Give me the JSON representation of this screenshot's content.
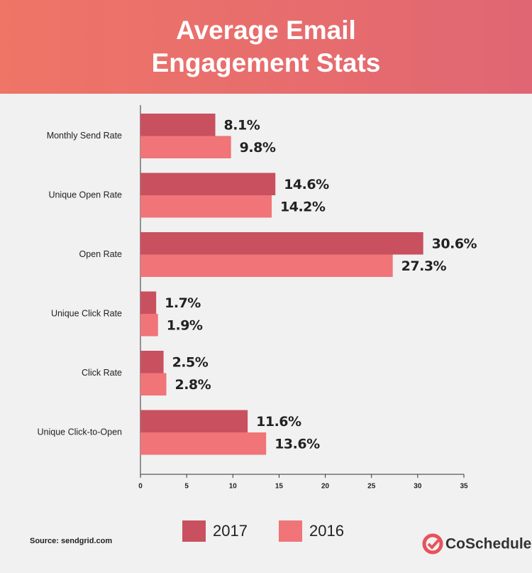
{
  "chart_data": {
    "type": "bar",
    "orientation": "horizontal",
    "title": "Average Email Engagement Stats",
    "categories": [
      "Monthly Send Rate",
      "Unique Open Rate",
      "Open Rate",
      "Unique Click Rate",
      "Click Rate",
      "Unique Click-to-Open"
    ],
    "series": [
      {
        "name": "2017",
        "color": "#c9505e",
        "values": [
          8.1,
          14.6,
          30.6,
          1.7,
          2.5,
          11.6
        ],
        "value_labels": [
          "8.1%",
          "14.6%",
          "30.6%",
          "1.7%",
          "2.5%",
          "11.6%"
        ]
      },
      {
        "name": "2016",
        "color": "#f07478",
        "values": [
          9.8,
          14.2,
          27.3,
          1.9,
          2.8,
          13.6
        ],
        "value_labels": [
          "9.8%",
          "14.2%",
          "27.3%",
          "1.9%",
          "2.8%",
          "13.6%"
        ]
      }
    ],
    "xlim": [
      0,
      35
    ],
    "xticks": [
      0,
      5,
      10,
      15,
      20,
      25,
      30,
      35
    ],
    "grid": false,
    "legend": "bottom",
    "source": "Source: sendgrid.com",
    "brand": "CoSchedule"
  }
}
